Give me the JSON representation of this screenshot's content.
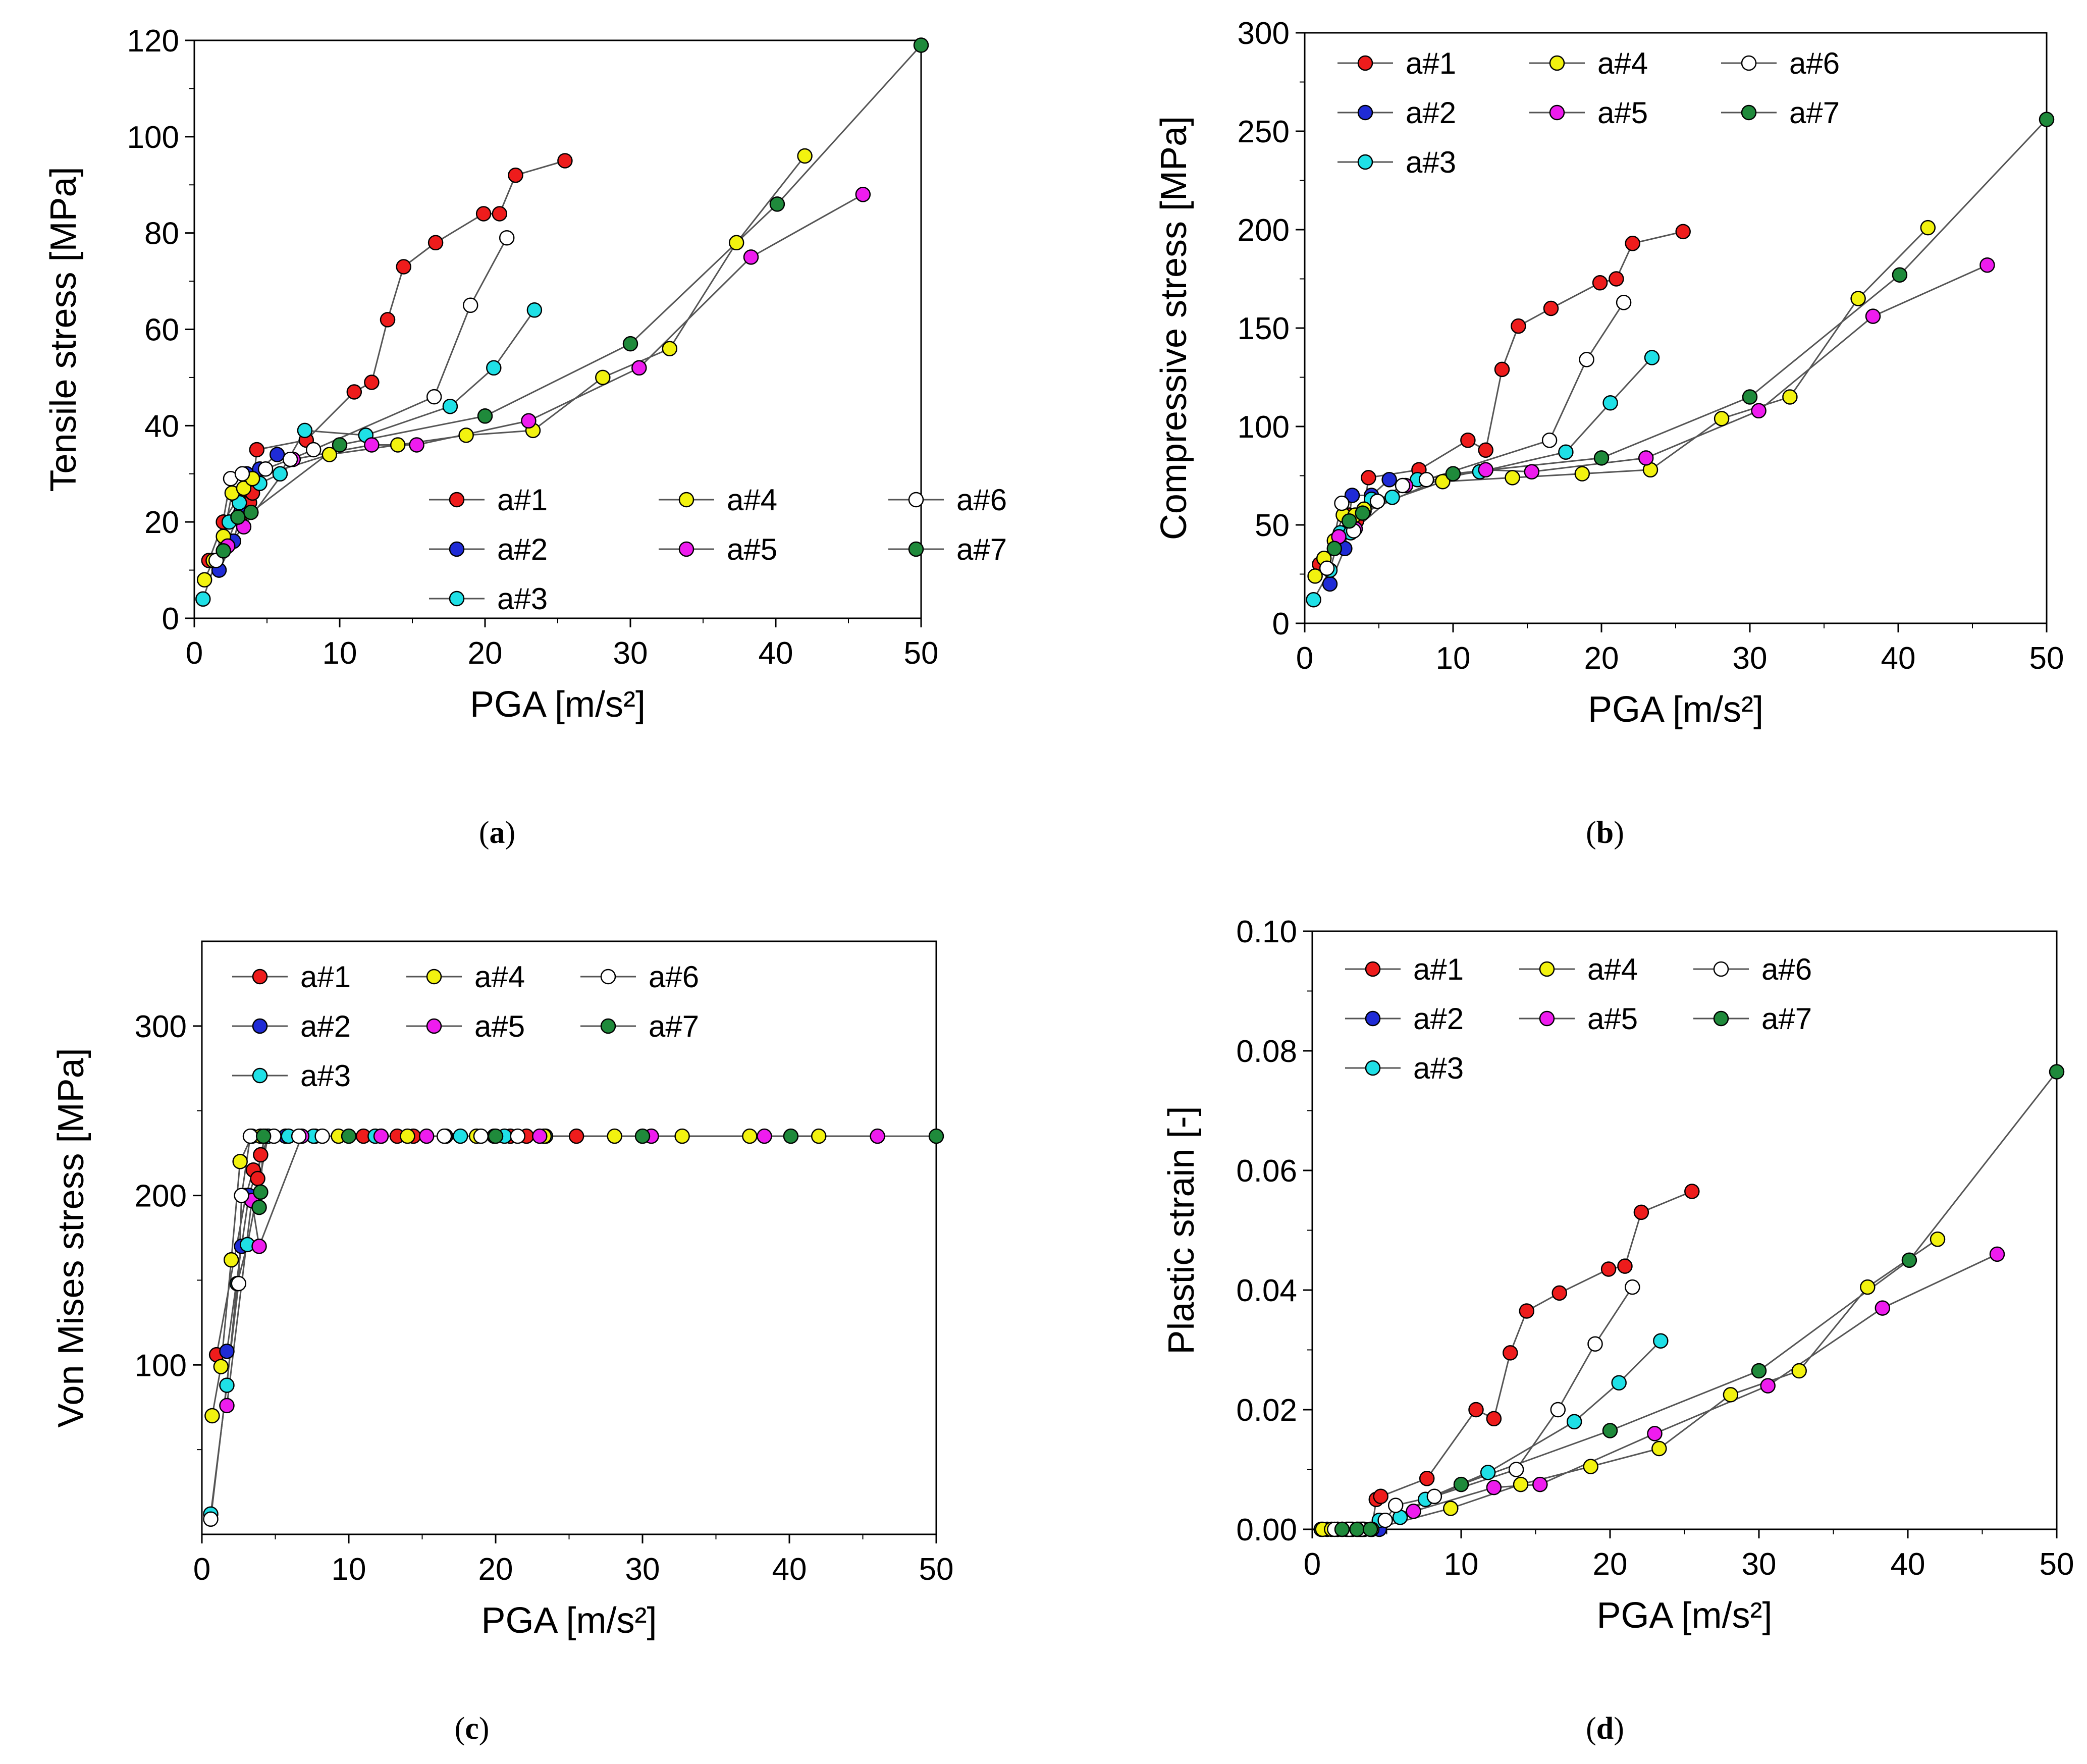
{
  "legend_labels": [
    "a#1",
    "a#2",
    "a#3",
    "a#4",
    "a#5",
    "a#6",
    "a#7"
  ],
  "colors": {
    "a#1": "#ee1c1c",
    "a#2": "#1f2bd6",
    "a#3": "#1fe0e6",
    "a#4": "#f2f20f",
    "a#5": "#ee1cee",
    "a#6": "#ffffff",
    "a#7": "#1f8a3b",
    "line": "#555555"
  },
  "chart_data": [
    {
      "type": "scatter",
      "panel": "(a)",
      "caption_letter": "a",
      "title": "",
      "xlabel": "PGA  [m/s²]",
      "ylabel": "Tensile stress [MPa]",
      "xlim": [
        0,
        50
      ],
      "ylim": [
        0,
        120
      ],
      "xticks": [
        0,
        10,
        20,
        30,
        40,
        50
      ],
      "yticks": [
        0,
        20,
        40,
        60,
        80,
        100,
        120
      ],
      "ytick_labels": [
        "0",
        "20",
        "40",
        "60",
        "80",
        "100",
        "120"
      ],
      "legend_position": "bottom-right",
      "series": [
        {
          "name": "a#1",
          "x": [
            1.0,
            2.0,
            3.0,
            3.5,
            3.8,
            4.0,
            4.3,
            7.7,
            11.0,
            12.2,
            13.3,
            14.4,
            16.6,
            19.9,
            21.0,
            22.1,
            25.5
          ],
          "y": [
            12,
            20,
            25,
            22,
            24,
            26,
            35,
            37,
            47,
            49,
            62,
            73,
            78,
            84,
            84,
            92,
            95
          ]
        },
        {
          "name": "a#2",
          "x": [
            1.7,
            2.7,
            3.2,
            3.6,
            4.5,
            5.7
          ],
          "y": [
            10,
            16,
            22,
            30,
            31,
            34
          ]
        },
        {
          "name": "a#3",
          "x": [
            0.6,
            2.4,
            3.1,
            4.5,
            5.9,
            7.6,
            11.8,
            17.6,
            20.6,
            23.4
          ],
          "y": [
            4,
            20,
            24,
            28,
            30,
            39,
            38,
            44,
            52,
            64
          ]
        },
        {
          "name": "a#4",
          "x": [
            0.7,
            1.3,
            2.0,
            2.6,
            3.4,
            4.0,
            9.3,
            14.0,
            18.7,
            23.3,
            28.1,
            32.7,
            37.3,
            42.0
          ],
          "y": [
            8,
            12,
            17,
            26,
            27,
            29,
            34,
            36,
            38,
            39,
            50,
            56,
            78,
            96
          ]
        },
        {
          "name": "a#5",
          "x": [
            2.3,
            3.4,
            6.8,
            12.2,
            15.3,
            23.0,
            30.6,
            38.3,
            46.0
          ],
          "y": [
            15,
            19,
            33,
            36,
            36,
            41,
            52,
            75,
            88
          ]
        },
        {
          "name": "a#6",
          "x": [
            1.5,
            2.5,
            3.3,
            4.9,
            6.6,
            8.2,
            16.5,
            19.0,
            21.5
          ],
          "y": [
            12,
            29,
            30,
            31,
            33,
            35,
            46,
            65,
            79
          ]
        },
        {
          "name": "a#7",
          "x": [
            2.0,
            3.0,
            3.9,
            10.0,
            20.0,
            30.0,
            40.1,
            50.0
          ],
          "y": [
            14,
            21,
            22,
            36,
            42,
            57,
            86,
            119
          ]
        }
      ]
    },
    {
      "type": "scatter",
      "panel": "(b)",
      "caption_letter": "b",
      "title": "",
      "xlabel": "PGA  [m/s²]",
      "ylabel": "Compressive stress [MPa]",
      "xlim": [
        0,
        50
      ],
      "ylim": [
        0,
        300
      ],
      "xticks": [
        0,
        10,
        20,
        30,
        40,
        50
      ],
      "yticks": [
        0,
        50,
        100,
        150,
        200,
        250,
        300
      ],
      "ytick_labels": [
        "0",
        "50",
        "100",
        "150",
        "200",
        "250",
        "300"
      ],
      "legend_position": "top-left",
      "series": [
        {
          "name": "a#1",
          "x": [
            1.0,
            3.0,
            3.5,
            4.0,
            4.3,
            7.7,
            11.0,
            12.2,
            13.3,
            14.4,
            16.6,
            19.9,
            21.0,
            22.1,
            25.5
          ],
          "y": [
            30,
            55,
            52,
            57,
            74,
            78,
            93,
            88,
            129,
            151,
            160,
            173,
            175,
            193,
            199
          ]
        },
        {
          "name": "a#2",
          "x": [
            1.7,
            2.7,
            3.2,
            4.5,
            5.7
          ],
          "y": [
            20,
            38,
            65,
            65,
            73
          ]
        },
        {
          "name": "a#3",
          "x": [
            0.6,
            1.7,
            2.4,
            3.1,
            4.5,
            5.9,
            7.6,
            11.8,
            17.6,
            20.6,
            23.4
          ],
          "y": [
            12,
            27,
            46,
            46,
            63,
            64,
            73,
            77,
            87,
            112,
            135
          ]
        },
        {
          "name": "a#4",
          "x": [
            0.7,
            1.3,
            2.0,
            2.6,
            3.4,
            4.0,
            9.3,
            14.0,
            18.7,
            23.3,
            28.1,
            32.7,
            37.3,
            42.0
          ],
          "y": [
            24,
            33,
            42,
            55,
            55,
            58,
            72,
            74,
            76,
            78,
            104,
            115,
            165,
            201
          ]
        },
        {
          "name": "a#5",
          "x": [
            2.3,
            3.4,
            6.8,
            12.2,
            15.3,
            23.0,
            30.6,
            38.3,
            46.0
          ],
          "y": [
            44,
            48,
            70,
            78,
            77,
            84,
            108,
            156,
            182
          ]
        },
        {
          "name": "a#6",
          "x": [
            1.5,
            2.5,
            3.3,
            4.9,
            6.6,
            8.2,
            16.5,
            19.0,
            21.5
          ],
          "y": [
            28,
            61,
            47,
            62,
            70,
            73,
            93,
            134,
            163
          ]
        },
        {
          "name": "a#7",
          "x": [
            2.0,
            3.0,
            3.9,
            10.0,
            20.0,
            30.0,
            40.1,
            50.0
          ],
          "y": [
            38,
            52,
            56,
            76,
            84,
            115,
            177,
            256
          ]
        }
      ]
    },
    {
      "type": "scatter",
      "panel": "(c)",
      "caption_letter": "c",
      "title": "",
      "xlabel": "PGA  [m/s²]",
      "ylabel": "Von Mises stress [MPa]",
      "xlim": [
        0,
        50
      ],
      "ylim": [
        0,
        350
      ],
      "xticks": [
        0,
        10,
        20,
        30,
        40,
        50
      ],
      "yticks": [
        100,
        200,
        300
      ],
      "ytick_labels": [
        "100",
        "200",
        "300"
      ],
      "legend_position": "top-left",
      "series": [
        {
          "name": "a#1",
          "x": [
            1.0,
            3.0,
            3.5,
            3.8,
            4.0,
            4.3,
            7.7,
            11.0,
            12.2,
            13.3,
            14.4,
            16.6,
            19.9,
            21.0,
            22.1,
            25.5
          ],
          "y": [
            106,
            200,
            215,
            210,
            224,
            235,
            235,
            235,
            235,
            235,
            235,
            235,
            235,
            235,
            235,
            235
          ]
        },
        {
          "name": "a#2",
          "x": [
            1.7,
            2.7,
            3.2,
            4.5,
            5.7
          ],
          "y": [
            108,
            170,
            200,
            235,
            235
          ]
        },
        {
          "name": "a#3",
          "x": [
            0.6,
            1.7,
            2.4,
            3.1,
            4.5,
            5.9,
            7.6,
            11.8,
            17.6,
            20.6,
            23.4
          ],
          "y": [
            12,
            88,
            148,
            171,
            235,
            235,
            235,
            235,
            235,
            235,
            235
          ]
        },
        {
          "name": "a#4",
          "x": [
            0.7,
            1.3,
            2.0,
            2.6,
            3.4,
            4.0,
            9.3,
            14.0,
            18.7,
            23.3,
            28.1,
            32.7,
            37.3,
            42.0
          ],
          "y": [
            70,
            99,
            162,
            220,
            235,
            235,
            235,
            235,
            235,
            235,
            235,
            235,
            235,
            235
          ]
        },
        {
          "name": "a#5",
          "x": [
            1.7,
            3.4,
            3.9,
            6.8,
            12.2,
            15.3,
            23.0,
            30.6,
            38.3,
            46.0
          ],
          "y": [
            76,
            197,
            170,
            235,
            235,
            235,
            235,
            235,
            235,
            235
          ]
        },
        {
          "name": "a#6",
          "x": [
            0.6,
            2.5,
            2.7,
            3.3,
            4.9,
            6.6,
            8.2,
            16.5,
            19.0,
            21.5
          ],
          "y": [
            9,
            148,
            200,
            235,
            235,
            235,
            235,
            235,
            235,
            235
          ]
        },
        {
          "name": "a#7",
          "x": [
            3.9,
            4.0,
            4.2,
            10.0,
            20.0,
            30.0,
            40.1,
            50.0
          ],
          "y": [
            193,
            202,
            235,
            235,
            235,
            235,
            235,
            235
          ]
        }
      ]
    },
    {
      "type": "scatter",
      "panel": "(d)",
      "caption_letter": "d",
      "title": "",
      "xlabel": "PGA  [m/s²]",
      "ylabel": "Plastic strain [-]",
      "xlim": [
        0,
        50
      ],
      "ylim": [
        0,
        0.1
      ],
      "xticks": [
        0,
        10,
        20,
        30,
        40,
        50
      ],
      "yticks": [
        0,
        0.02,
        0.04,
        0.06,
        0.08,
        0.1
      ],
      "ytick_labels": [
        "0.00",
        "0.02",
        "0.04",
        "0.06",
        "0.08",
        "0.10"
      ],
      "legend_position": "top-left",
      "series": [
        {
          "name": "a#1",
          "x": [
            1.0,
            3.0,
            3.5,
            4.0,
            4.3,
            4.6,
            7.7,
            11.0,
            12.2,
            13.3,
            14.4,
            16.6,
            19.9,
            21.0,
            22.1,
            25.5
          ],
          "y": [
            0.0,
            0.0,
            0.0,
            0.0,
            0.005,
            0.0055,
            0.0085,
            0.02,
            0.0185,
            0.0295,
            0.0365,
            0.0395,
            0.0435,
            0.044,
            0.053,
            0.0565
          ]
        },
        {
          "name": "a#2",
          "x": [
            1.7,
            2.7,
            3.2,
            4.5
          ],
          "y": [
            0.0,
            0.0,
            0.0,
            0.0
          ]
        },
        {
          "name": "a#3",
          "x": [
            0.6,
            1.7,
            2.4,
            3.1,
            4.5,
            5.9,
            7.6,
            11.8,
            17.6,
            20.6,
            23.4
          ],
          "y": [
            0.0,
            0.0,
            0.0,
            0.0,
            0.0015,
            0.002,
            0.005,
            0.0095,
            0.018,
            0.0245,
            0.0315
          ]
        },
        {
          "name": "a#4",
          "x": [
            0.7,
            1.3,
            2.0,
            2.6,
            3.4,
            4.0,
            9.3,
            14.0,
            18.7,
            23.3,
            28.1,
            32.7,
            37.3,
            42.0
          ],
          "y": [
            0.0,
            0.0,
            0.0,
            0.0,
            0.0,
            0.0,
            0.0035,
            0.0075,
            0.0105,
            0.0135,
            0.0225,
            0.0265,
            0.0405,
            0.0485
          ]
        },
        {
          "name": "a#5",
          "x": [
            2.3,
            3.4,
            6.8,
            12.2,
            15.3,
            23.0,
            30.6,
            38.3,
            46.0
          ],
          "y": [
            0.0,
            0.0,
            0.003,
            0.007,
            0.0075,
            0.016,
            0.024,
            0.037,
            0.046
          ]
        },
        {
          "name": "a#6",
          "x": [
            1.5,
            2.5,
            3.3,
            4.9,
            5.6,
            8.2,
            13.7,
            16.5,
            19.0,
            21.5
          ],
          "y": [
            0.0,
            0.0,
            0.0,
            0.0015,
            0.004,
            0.0055,
            0.01,
            0.02,
            0.031,
            0.0405
          ]
        },
        {
          "name": "a#7",
          "x": [
            2.0,
            3.0,
            3.9,
            10.0,
            20.0,
            30.0,
            40.1,
            50.0
          ],
          "y": [
            0.0,
            0.0,
            0.0,
            0.0075,
            0.0165,
            0.0265,
            0.045,
            0.0765
          ]
        }
      ]
    }
  ]
}
